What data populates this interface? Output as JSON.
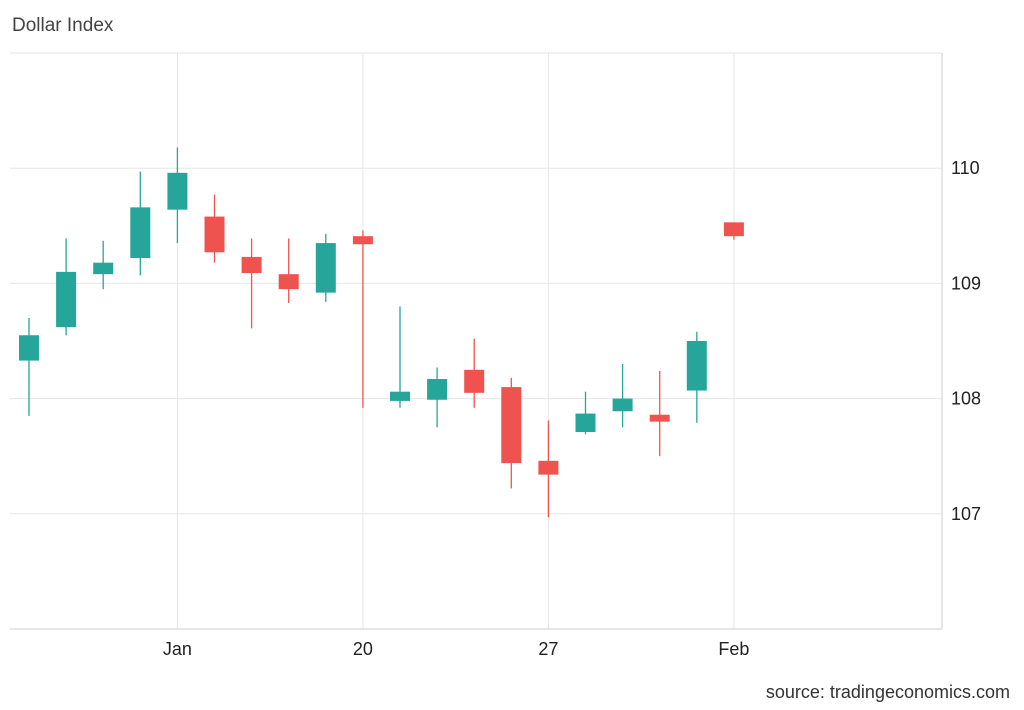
{
  "title": "Dollar Index",
  "source": "source: tradingeconomics.com",
  "chart_data": {
    "type": "candlestick",
    "title": "Dollar Index",
    "x_tick_labels": [
      {
        "label": "Jan",
        "index": 4
      },
      {
        "label": "20",
        "index": 9
      },
      {
        "label": "27",
        "index": 14
      },
      {
        "label": "Feb",
        "index": 19
      }
    ],
    "y_ticks": [
      107,
      108,
      109,
      110
    ],
    "ylim": [
      106.0,
      111.0
    ],
    "colors": {
      "up": "#26a69a",
      "down": "#ef5350",
      "grid": "#e6e6e6"
    },
    "candles": [
      {
        "index": 0,
        "open": 108.33,
        "high": 108.7,
        "low": 107.85,
        "close": 108.55
      },
      {
        "index": 1,
        "open": 108.62,
        "high": 109.39,
        "low": 108.55,
        "close": 109.1
      },
      {
        "index": 2,
        "open": 109.08,
        "high": 109.37,
        "low": 108.95,
        "close": 109.18
      },
      {
        "index": 3,
        "open": 109.22,
        "high": 109.97,
        "low": 109.07,
        "close": 109.66
      },
      {
        "index": 4,
        "open": 109.64,
        "high": 110.18,
        "low": 109.35,
        "close": 109.96
      },
      {
        "index": 5,
        "open": 109.58,
        "high": 109.77,
        "low": 109.18,
        "close": 109.27
      },
      {
        "index": 6,
        "open": 109.23,
        "high": 109.39,
        "low": 108.61,
        "close": 109.09
      },
      {
        "index": 7,
        "open": 109.08,
        "high": 109.39,
        "low": 108.83,
        "close": 108.95
      },
      {
        "index": 8,
        "open": 108.92,
        "high": 109.43,
        "low": 108.84,
        "close": 109.35
      },
      {
        "index": 9,
        "open": 109.41,
        "high": 109.46,
        "low": 107.92,
        "close": 109.34
      },
      {
        "index": 10,
        "open": 107.98,
        "high": 108.8,
        "low": 107.92,
        "close": 108.06
      },
      {
        "index": 11,
        "open": 107.99,
        "high": 108.27,
        "low": 107.75,
        "close": 108.17
      },
      {
        "index": 12,
        "open": 108.25,
        "high": 108.52,
        "low": 107.92,
        "close": 108.05
      },
      {
        "index": 13,
        "open": 108.1,
        "high": 108.18,
        "low": 107.22,
        "close": 107.44
      },
      {
        "index": 14,
        "open": 107.46,
        "high": 107.81,
        "low": 106.97,
        "close": 107.34
      },
      {
        "index": 15,
        "open": 107.71,
        "high": 108.06,
        "low": 107.69,
        "close": 107.87
      },
      {
        "index": 16,
        "open": 107.89,
        "high": 108.3,
        "low": 107.75,
        "close": 108.0
      },
      {
        "index": 17,
        "open": 107.86,
        "high": 108.24,
        "low": 107.5,
        "close": 107.8
      },
      {
        "index": 18,
        "open": 108.07,
        "high": 108.58,
        "low": 107.79,
        "close": 108.5
      },
      {
        "index": 19,
        "open": 109.53,
        "high": 109.53,
        "low": 109.38,
        "close": 109.41
      }
    ]
  }
}
